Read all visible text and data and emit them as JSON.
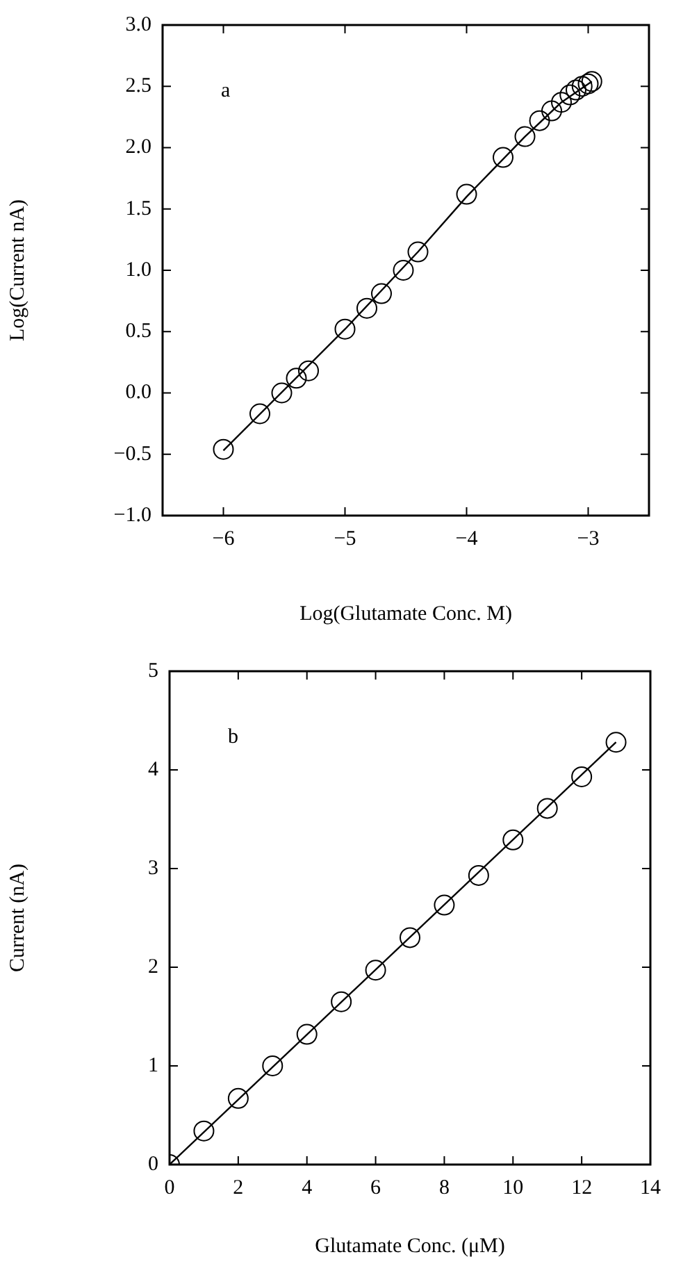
{
  "chart_data": [
    {
      "type": "scatter",
      "xlabel": "Log(Glutamate Conc. M)",
      "ylabel": "Log(Current nA)",
      "annotations": [
        "a"
      ],
      "marker": "circle",
      "grid": false,
      "xlim": [
        -6.5,
        -2.5
      ],
      "xticks": [
        {
          "value": -6,
          "label": "−6"
        },
        {
          "value": -5,
          "label": "−5"
        },
        {
          "value": -4,
          "label": "−4"
        },
        {
          "value": -3,
          "label": "−3"
        }
      ],
      "ylim": [
        -1,
        3
      ],
      "yticks": [
        {
          "value": -1,
          "label": "−1.0"
        },
        {
          "value": -0.5,
          "label": "−0.5"
        },
        {
          "value": 0,
          "label": "0.0"
        },
        {
          "value": 0.5,
          "label": "0.5"
        },
        {
          "value": 1,
          "label": "1.0"
        },
        {
          "value": 1.5,
          "label": "1.5"
        },
        {
          "value": 2,
          "label": "2.0"
        },
        {
          "value": 2.5,
          "label": "2.5"
        },
        {
          "value": 3,
          "label": "3.0"
        }
      ],
      "series": [
        {
          "color": "#000000",
          "x": [
            -6,
            -5.7,
            -5.52,
            -5.4,
            -5.3,
            -5,
            -4.82,
            -4.7,
            -4.52,
            -4.4,
            -4,
            -3.7,
            -3.52,
            -3.4,
            -3.3,
            -3.22,
            -3.15,
            -3.1,
            -3.05,
            -3.0,
            -2.97
          ],
          "values": [
            -0.46,
            -0.17,
            0.0,
            0.12,
            0.18,
            0.52,
            0.69,
            0.81,
            1.0,
            1.15,
            1.62,
            1.92,
            2.09,
            2.22,
            2.3,
            2.37,
            2.43,
            2.47,
            2.5,
            2.52,
            2.54
          ]
        },
        {
          "type": "line",
          "color": "#000000",
          "marker": "none",
          "line_style": "solid",
          "x": [
            -6,
            -5,
            -4.4,
            -4,
            -3.52,
            -3.22,
            -2.97
          ],
          "values": [
            -0.47,
            0.52,
            1.15,
            1.6,
            2.09,
            2.37,
            2.54
          ]
        }
      ]
    },
    {
      "type": "scatter",
      "xlabel": "Glutamate Conc. (μM)",
      "ylabel": "Current (nA)",
      "annotations": [
        "b"
      ],
      "marker": "circle",
      "grid": false,
      "xlim": [
        0,
        14
      ],
      "xticks": [
        0,
        2,
        4,
        6,
        8,
        10,
        12,
        14
      ],
      "ylim": [
        0,
        5
      ],
      "yticks": [
        0,
        1,
        2,
        3,
        4,
        5
      ],
      "series": [
        {
          "color": "#000000",
          "x": [
            0,
            1,
            2,
            3,
            4,
            5,
            6,
            7,
            8,
            9,
            10,
            11,
            12,
            13
          ],
          "values": [
            0,
            0.34,
            0.67,
            1.0,
            1.32,
            1.65,
            1.97,
            2.3,
            2.63,
            2.93,
            3.29,
            3.61,
            3.93,
            4.28
          ]
        },
        {
          "type": "line",
          "color": "#000000",
          "marker": "none",
          "line_style": "solid",
          "x": [
            0,
            13
          ],
          "values": [
            0,
            4.28
          ]
        }
      ]
    }
  ]
}
